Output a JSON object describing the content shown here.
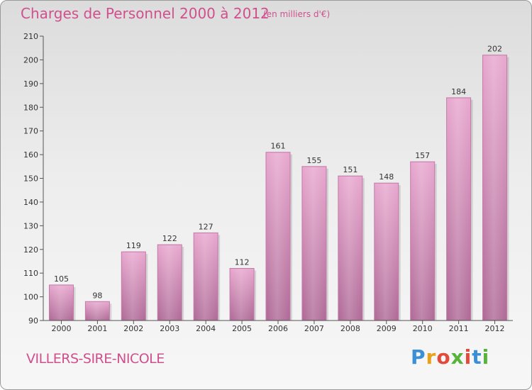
{
  "header": {
    "title": "Charges de Personnel 2000 à 2012",
    "subtitle": "(en milliers d'€)"
  },
  "footer": {
    "location": "VILLERS-SIRE-NICOLE",
    "brand_letters": [
      "P",
      "r",
      "o",
      "x",
      "i",
      "t",
      "i"
    ],
    "brand_colors": [
      "#3b8fd6",
      "#e8a21a",
      "#e24a3a",
      "#58b33a",
      "#e24a3a",
      "#3b8fd6",
      "#58b33a"
    ]
  },
  "colors": {
    "accent": "#d0508e",
    "bar_top": "#e8a8cf",
    "bar_bottom": "#b06c98",
    "bar_stroke": "#c27aa8"
  },
  "chart_data": {
    "type": "bar",
    "title": "Charges de Personnel 2000 à 2012",
    "subtitle": "(en milliers d'€)",
    "categories": [
      "2000",
      "2001",
      "2002",
      "2003",
      "2004",
      "2005",
      "2006",
      "2007",
      "2008",
      "2009",
      "2010",
      "2011",
      "2012"
    ],
    "values": [
      105,
      98,
      119,
      122,
      127,
      112,
      161,
      155,
      151,
      148,
      157,
      184,
      202
    ],
    "ylim": [
      90,
      210
    ],
    "yticks": [
      90,
      100,
      110,
      120,
      130,
      140,
      150,
      160,
      170,
      180,
      190,
      200,
      210
    ],
    "grid": false,
    "data_labels": true
  }
}
